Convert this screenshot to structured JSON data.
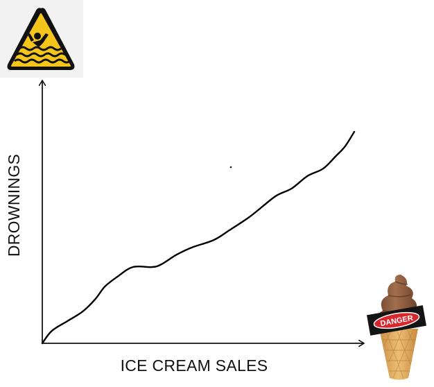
{
  "chart_data": {
    "type": "line",
    "title": "",
    "xlabel": "ICE CREAM SALES",
    "ylabel": "DROWNINGS",
    "grid": false,
    "legend": "none",
    "xlim": [
      0,
      100
    ],
    "ylim": [
      0,
      100
    ],
    "series": [
      {
        "color": "#000000",
        "points": [
          [
            0,
            0
          ],
          [
            3,
            5
          ],
          [
            8,
            9
          ],
          [
            13,
            13
          ],
          [
            17,
            18
          ],
          [
            20,
            23
          ],
          [
            24,
            27
          ],
          [
            29,
            31
          ],
          [
            35,
            31
          ],
          [
            38,
            32
          ],
          [
            43,
            36
          ],
          [
            48,
            39
          ],
          [
            55,
            42
          ],
          [
            60,
            46
          ],
          [
            66,
            51
          ],
          [
            70,
            55
          ],
          [
            75,
            60
          ],
          [
            80,
            63
          ],
          [
            85,
            68
          ],
          [
            90,
            71
          ],
          [
            94,
            76
          ],
          [
            97,
            80
          ],
          [
            100,
            86
          ]
        ]
      }
    ]
  },
  "icons": {
    "warning": "drowning-warning-sign-icon",
    "ice_cream": "ice-cream-cone-icon"
  },
  "ice_cream_label": "DANGER",
  "colors": {
    "warning_yellow": "#F6C51C",
    "cone": "#E2AE62",
    "soft_serve": "#8A5A3D",
    "danger_red": "#D7262C"
  }
}
